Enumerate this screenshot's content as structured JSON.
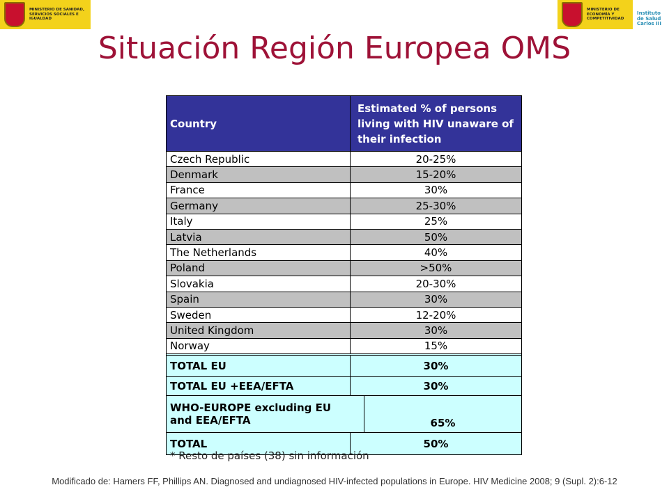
{
  "logos": {
    "left": "MINISTERIO DE SANIDAD, SERVICIOS SOCIALES E IGUALDAD",
    "right": "MINISTERIO DE ECONOMÍA Y COMPETITIVIDAD",
    "institute": "Instituto de Salud Carlos III"
  },
  "title": "Situación Región Europea OMS",
  "table": {
    "header": [
      "Country",
      "Estimated % of persons living with HIV unaware of their infection"
    ],
    "rows": [
      [
        "Czech Republic",
        "20-25%"
      ],
      [
        "Denmark",
        "15-20%"
      ],
      [
        "France",
        "30%"
      ],
      [
        "Germany",
        "25-30%"
      ],
      [
        "Italy",
        "25%"
      ],
      [
        "Latvia",
        "50%"
      ],
      [
        "The Netherlands",
        "40%"
      ],
      [
        "Poland",
        ">50%"
      ],
      [
        "Slovakia",
        "20-30%"
      ],
      [
        "Spain",
        "30%"
      ],
      [
        "Sweden",
        "12-20%"
      ],
      [
        "United Kingdom",
        "30%"
      ],
      [
        "Norway",
        "15%"
      ]
    ],
    "totals": [
      [
        "TOTAL EU",
        "30%"
      ],
      [
        "TOTAL EU +EEA/EFTA",
        "30%"
      ],
      [
        "WHO-EUROPE excluding EU and EEA/EFTA",
        "65%"
      ],
      [
        "TOTAL",
        "50%"
      ]
    ]
  },
  "footnote": "* Resto de países (38) sin información",
  "source": "Modificado de: Hamers FF, Phillips AN. Diagnosed and undiagnosed HIV-infected populations in Europe. HIV Medicine 2008; 9 (Supl. 2):6-12"
}
